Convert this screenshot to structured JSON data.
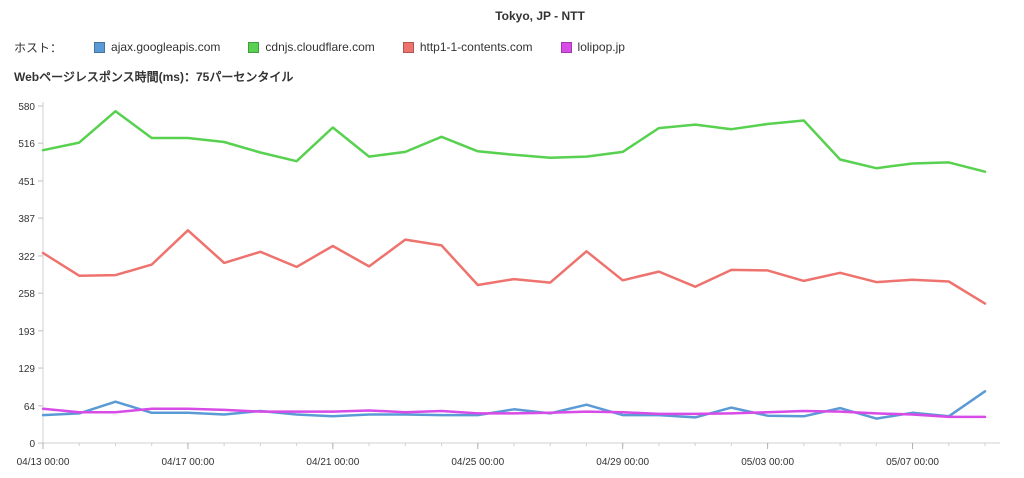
{
  "chart_data": {
    "type": "line",
    "title": "Tokyo, JP - NTT",
    "legend_prefix": "ホスト：",
    "subtitle": "Webページレスポンス時間(ms)：75パーセンタイル",
    "xlabel": "",
    "ylabel": "",
    "x": [
      "04/13",
      "04/14",
      "04/15",
      "04/16",
      "04/17",
      "04/18",
      "04/19",
      "04/20",
      "04/21",
      "04/22",
      "04/23",
      "04/24",
      "04/25",
      "04/26",
      "04/27",
      "04/28",
      "04/29",
      "04/30",
      "05/01",
      "05/02",
      "05/03",
      "05/04",
      "05/05",
      "05/06",
      "05/07",
      "05/08",
      "05/09"
    ],
    "x_tick_labels": [
      "04/13 00:00",
      "04/17 00:00",
      "04/21 00:00",
      "04/25 00:00",
      "04/29 00:00",
      "05/03 00:00",
      "05/07 00:00"
    ],
    "x_tick_index": [
      0,
      4,
      8,
      12,
      16,
      20,
      24
    ],
    "y_ticks": [
      0,
      64,
      129,
      193,
      258,
      322,
      387,
      451,
      516,
      580
    ],
    "ylim": [
      0,
      580
    ],
    "grid": false,
    "legend_position": "top-left",
    "series": [
      {
        "name": "ajax.googleapis.com",
        "color": "#5b9bd5",
        "values": [
          48,
          51,
          71,
          52,
          52,
          49,
          55,
          49,
          46,
          49,
          49,
          48,
          48,
          58,
          51,
          66,
          48,
          48,
          44,
          61,
          47,
          46,
          60,
          42,
          52,
          46,
          89
        ]
      },
      {
        "name": "cdnjs.cloudflare.com",
        "color": "#57d14f",
        "values": [
          504,
          517,
          571,
          525,
          525,
          518,
          500,
          485,
          543,
          493,
          501,
          527,
          502,
          496,
          491,
          493,
          501,
          542,
          548,
          540,
          549,
          555,
          488,
          473,
          481,
          483,
          467
        ]
      },
      {
        "name": "http1-1-contents.com",
        "color": "#ee736e",
        "values": [
          327,
          288,
          289,
          307,
          366,
          310,
          329,
          303,
          339,
          304,
          350,
          340,
          272,
          282,
          276,
          330,
          280,
          295,
          269,
          298,
          297,
          279,
          293,
          277,
          281,
          278,
          240
        ]
      },
      {
        "name": "lolipop.jp",
        "color": "#d74be6",
        "values": [
          59,
          53,
          53,
          59,
          59,
          57,
          54,
          54,
          54,
          56,
          53,
          55,
          51,
          51,
          52,
          54,
          53,
          50,
          50,
          51,
          53,
          55,
          54,
          51,
          49,
          45,
          45
        ]
      }
    ]
  }
}
